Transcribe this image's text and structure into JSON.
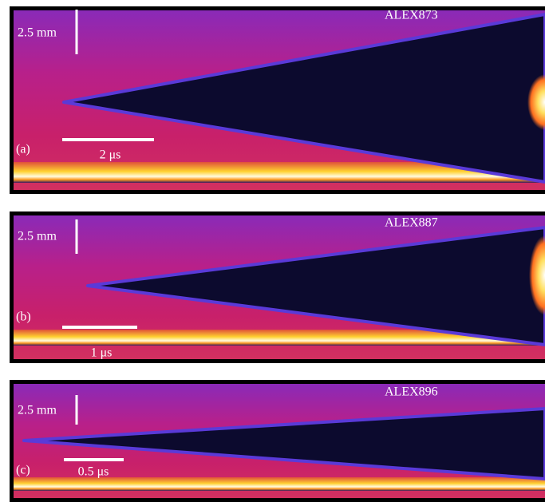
{
  "panels": [
    {
      "label": "(a)",
      "shot": "ALEX873",
      "length_scale": "2.5 mm",
      "time_scale": "2 μs"
    },
    {
      "label": "(b)",
      "shot": "ALEX887",
      "length_scale": "2.5 mm",
      "time_scale": "1 μs"
    },
    {
      "label": "(c)",
      "shot": "ALEX896",
      "length_scale": "2.5 mm",
      "time_scale": "0.5 μs"
    }
  ]
}
